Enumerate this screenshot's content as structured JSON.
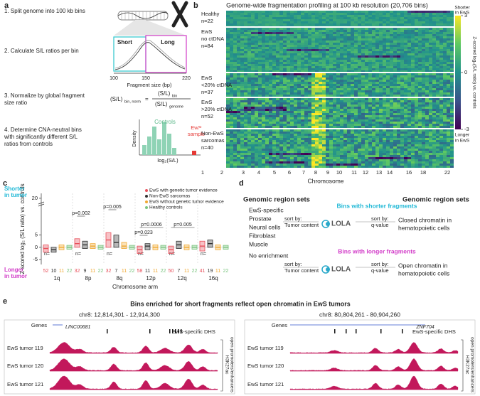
{
  "panel_a": {
    "label": "a",
    "steps": [
      [
        "1. Split genome into 100 kb bins"
      ],
      [
        "2. Calculate S/L ratios per bin"
      ],
      [
        "3. Normalize by global fragment",
        "size ratio"
      ],
      [
        "4. Determine CNA-neutral bins",
        "with significantly different S/L",
        "ratios from controls"
      ]
    ],
    "fragment_plot": {
      "short": "Short",
      "long": "Long",
      "xlabel": "Fragment size (bp)",
      "xticks": [
        "100",
        "150",
        "220"
      ]
    },
    "formula": {
      "lhs": "(S/L)",
      "lhs_sub": "bin, norm",
      "eq": "=",
      "num": "(S/L)",
      "num_sub": "bin",
      "den": "(S/L)",
      "den_sub": "genome"
    },
    "density": {
      "controls": "Controls",
      "sample": [
        "EwS",
        "sample"
      ],
      "ylabel": "Density",
      "xlabel": "log₂(S/L)"
    }
  },
  "panel_b": {
    "label": "b",
    "title": "Genome-wide fragmentation profiling at 100 kb resolution (20,706 bins)",
    "groups": [
      [
        "Healthy",
        "n=22"
      ],
      [
        "EwS",
        "no ctDNA",
        "n=84"
      ],
      [
        "EwS",
        "<20% ctDNA",
        "n=37"
      ],
      [
        "EwS",
        ">20% ctDNA",
        "n=52"
      ],
      [
        "Non-EwS",
        "sarcomas",
        "n=40"
      ]
    ],
    "chromosomes": [
      "1",
      "2",
      "3",
      "4",
      "5",
      "6",
      "7",
      "8",
      "9",
      "10",
      "11",
      "12",
      "13",
      "14",
      "16",
      "18",
      "22"
    ],
    "xlabel": "Chromosome",
    "colorbar": {
      "top": [
        "Shorter",
        "in EwS"
      ],
      "bottom": [
        "Longer",
        "in EwS"
      ],
      "lim": [
        -3,
        3
      ],
      "ticks": [
        3,
        0,
        -3
      ],
      "label": "Z-scored log₂(S/L ratio) vs. controls"
    }
  },
  "panel_c": {
    "label": "c",
    "type": "box",
    "top_label": [
      "Shorter",
      "in tumor"
    ],
    "bottom_label": [
      "Longer",
      "in tumor"
    ],
    "ylabel": "Z-scored log₂ (S/L ratio) vs. controls",
    "xlabel": "Chromosome arm",
    "n_label": "n=",
    "categories": [
      "1q",
      "8p",
      "8q",
      "12p",
      "12q",
      "16q"
    ],
    "ylim": [
      -7,
      22
    ],
    "yticks": [
      -5,
      0,
      5,
      20
    ],
    "annotations": [
      "p=0.002",
      "p=0.005",
      "p=0.0006",
      "p=0.023",
      "p=0.005"
    ],
    "series": [
      {
        "name": "EwS with genetic tumor evidence",
        "color": "#e8505b",
        "q1": [
          -2,
          0,
          0,
          -2.5,
          -2.5,
          -1.5
        ],
        "median": [
          -0.5,
          1.5,
          3,
          -1,
          -1,
          0.5
        ],
        "q3": [
          1,
          3.5,
          6,
          0.5,
          0.5,
          2.5
        ],
        "n": [
          52,
          32,
          32,
          58,
          50,
          41
        ]
      },
      {
        "name": "Non-EwS sarcomas",
        "color": "#333333",
        "q1": [
          -2,
          -0.5,
          0,
          -1,
          -0.5,
          0
        ],
        "median": [
          -1,
          1,
          2,
          0.5,
          1,
          1.5
        ],
        "q3": [
          0,
          2.5,
          5,
          1.5,
          2.5,
          3
        ],
        "n": [
          10,
          9,
          7,
          11,
          7,
          19
        ]
      },
      {
        "name": "EwS without genetic tumor evidence",
        "color": "#f0a830",
        "q1": [
          -1,
          -0.5,
          -0.5,
          -1,
          -1,
          -1
        ],
        "median": [
          0,
          0.5,
          0.5,
          0,
          0,
          0
        ],
        "q3": [
          1,
          1.5,
          2,
          1,
          1,
          1
        ],
        "n": [
          11,
          11,
          11,
          11,
          11,
          11
        ]
      },
      {
        "name": "Healthy controls",
        "color": "#7ac47f",
        "q1": [
          -0.8,
          -0.8,
          -0.8,
          -0.8,
          -0.8,
          -0.8
        ],
        "median": [
          0,
          0,
          0,
          0,
          0,
          0
        ],
        "q3": [
          0.8,
          0.8,
          0.8,
          0.8,
          0.8,
          0.8
        ],
        "n": [
          22,
          22,
          22,
          22,
          22,
          22
        ]
      }
    ]
  },
  "panel_d": {
    "label": "d",
    "left_title": "Genomic region sets",
    "right_title": "Genomic region sets",
    "lola": "LOLA",
    "shorter": {
      "heading": "Bins with shorter fragments",
      "left_items": [
        "EwS-specific",
        "Prostate",
        "Neural cells",
        "Fibroblast",
        "Muscle"
      ],
      "left_sort": [
        "sort by:",
        "Tumor content"
      ],
      "right_sort": [
        "sort by:",
        "q-value"
      ],
      "right_items": [
        "Closed chromatin in",
        "hematopoietic cells"
      ]
    },
    "longer": {
      "heading": "Bins with longer fragments",
      "left_items": [
        "No enrichment"
      ],
      "left_sort": [
        "sort by:",
        "Tumor content"
      ],
      "right_sort": [
        "sort by:",
        "q-value"
      ],
      "right_items": [
        "Open chromatin in",
        "hematopoietic cells"
      ]
    }
  },
  "panel_e": {
    "label": "e",
    "title": "Bins enriched for short fragments reflect open chromatin in EwS tumors",
    "genes_label": "Genes",
    "dhs_label": "EwS-specific DHS",
    "tracks": [
      "EwS tumor 119",
      "EwS tumor 120",
      "EwS tumor 121"
    ],
    "side_label": [
      "H3K27ac",
      "open promoters/enhancers"
    ],
    "loci": [
      {
        "region": "chr8: 12,814,301 - 12,914,300",
        "gene": "LINC00681"
      },
      {
        "region": "chr8: 80,804,261 - 80,904,260",
        "gene": "ZNF704"
      }
    ]
  }
}
